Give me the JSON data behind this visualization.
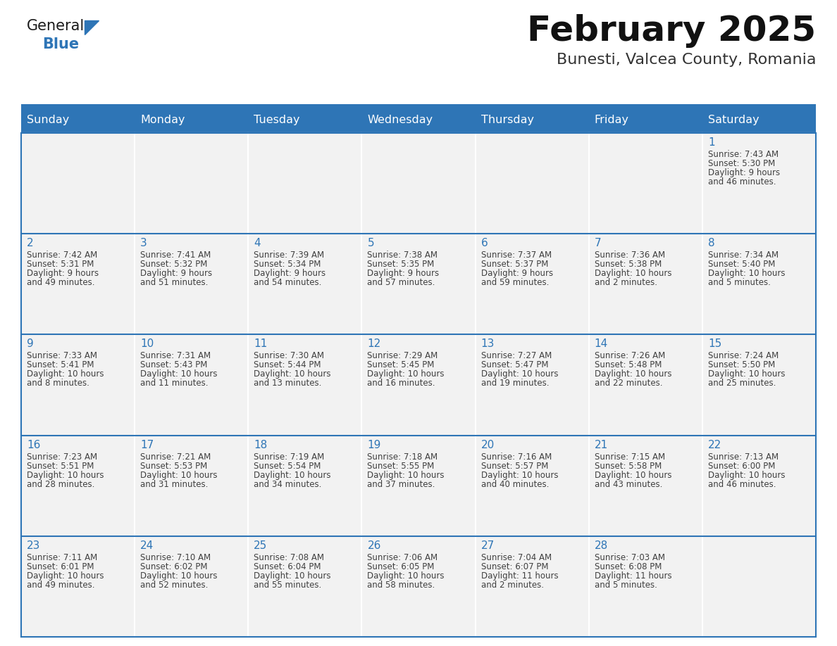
{
  "title": "February 2025",
  "subtitle": "Bunesti, Valcea County, Romania",
  "header_bg": "#2E75B6",
  "header_text_color": "#FFFFFF",
  "cell_bg": "#F2F2F2",
  "cell_bg_empty": "#F2F2F2",
  "day_number_color": "#2E75B6",
  "cell_text_color": "#404040",
  "separator_color": "#2E75B6",
  "border_color": "#2E75B6",
  "days_of_week": [
    "Sunday",
    "Monday",
    "Tuesday",
    "Wednesday",
    "Thursday",
    "Friday",
    "Saturday"
  ],
  "calendar": [
    [
      null,
      null,
      null,
      null,
      null,
      null,
      1
    ],
    [
      2,
      3,
      4,
      5,
      6,
      7,
      8
    ],
    [
      9,
      10,
      11,
      12,
      13,
      14,
      15
    ],
    [
      16,
      17,
      18,
      19,
      20,
      21,
      22
    ],
    [
      23,
      24,
      25,
      26,
      27,
      28,
      null
    ]
  ],
  "cell_data": {
    "1": {
      "sunrise": "7:43 AM",
      "sunset": "5:30 PM",
      "daylight": "9 hours",
      "daylight2": "and 46 minutes."
    },
    "2": {
      "sunrise": "7:42 AM",
      "sunset": "5:31 PM",
      "daylight": "9 hours",
      "daylight2": "and 49 minutes."
    },
    "3": {
      "sunrise": "7:41 AM",
      "sunset": "5:32 PM",
      "daylight": "9 hours",
      "daylight2": "and 51 minutes."
    },
    "4": {
      "sunrise": "7:39 AM",
      "sunset": "5:34 PM",
      "daylight": "9 hours",
      "daylight2": "and 54 minutes."
    },
    "5": {
      "sunrise": "7:38 AM",
      "sunset": "5:35 PM",
      "daylight": "9 hours",
      "daylight2": "and 57 minutes."
    },
    "6": {
      "sunrise": "7:37 AM",
      "sunset": "5:37 PM",
      "daylight": "9 hours",
      "daylight2": "and 59 minutes."
    },
    "7": {
      "sunrise": "7:36 AM",
      "sunset": "5:38 PM",
      "daylight": "10 hours",
      "daylight2": "and 2 minutes."
    },
    "8": {
      "sunrise": "7:34 AM",
      "sunset": "5:40 PM",
      "daylight": "10 hours",
      "daylight2": "and 5 minutes."
    },
    "9": {
      "sunrise": "7:33 AM",
      "sunset": "5:41 PM",
      "daylight": "10 hours",
      "daylight2": "and 8 minutes."
    },
    "10": {
      "sunrise": "7:31 AM",
      "sunset": "5:43 PM",
      "daylight": "10 hours",
      "daylight2": "and 11 minutes."
    },
    "11": {
      "sunrise": "7:30 AM",
      "sunset": "5:44 PM",
      "daylight": "10 hours",
      "daylight2": "and 13 minutes."
    },
    "12": {
      "sunrise": "7:29 AM",
      "sunset": "5:45 PM",
      "daylight": "10 hours",
      "daylight2": "and 16 minutes."
    },
    "13": {
      "sunrise": "7:27 AM",
      "sunset": "5:47 PM",
      "daylight": "10 hours",
      "daylight2": "and 19 minutes."
    },
    "14": {
      "sunrise": "7:26 AM",
      "sunset": "5:48 PM",
      "daylight": "10 hours",
      "daylight2": "and 22 minutes."
    },
    "15": {
      "sunrise": "7:24 AM",
      "sunset": "5:50 PM",
      "daylight": "10 hours",
      "daylight2": "and 25 minutes."
    },
    "16": {
      "sunrise": "7:23 AM",
      "sunset": "5:51 PM",
      "daylight": "10 hours",
      "daylight2": "and 28 minutes."
    },
    "17": {
      "sunrise": "7:21 AM",
      "sunset": "5:53 PM",
      "daylight": "10 hours",
      "daylight2": "and 31 minutes."
    },
    "18": {
      "sunrise": "7:19 AM",
      "sunset": "5:54 PM",
      "daylight": "10 hours",
      "daylight2": "and 34 minutes."
    },
    "19": {
      "sunrise": "7:18 AM",
      "sunset": "5:55 PM",
      "daylight": "10 hours",
      "daylight2": "and 37 minutes."
    },
    "20": {
      "sunrise": "7:16 AM",
      "sunset": "5:57 PM",
      "daylight": "10 hours",
      "daylight2": "and 40 minutes."
    },
    "21": {
      "sunrise": "7:15 AM",
      "sunset": "5:58 PM",
      "daylight": "10 hours",
      "daylight2": "and 43 minutes."
    },
    "22": {
      "sunrise": "7:13 AM",
      "sunset": "6:00 PM",
      "daylight": "10 hours",
      "daylight2": "and 46 minutes."
    },
    "23": {
      "sunrise": "7:11 AM",
      "sunset": "6:01 PM",
      "daylight": "10 hours",
      "daylight2": "and 49 minutes."
    },
    "24": {
      "sunrise": "7:10 AM",
      "sunset": "6:02 PM",
      "daylight": "10 hours",
      "daylight2": "and 52 minutes."
    },
    "25": {
      "sunrise": "7:08 AM",
      "sunset": "6:04 PM",
      "daylight": "10 hours",
      "daylight2": "and 55 minutes."
    },
    "26": {
      "sunrise": "7:06 AM",
      "sunset": "6:05 PM",
      "daylight": "10 hours",
      "daylight2": "and 58 minutes."
    },
    "27": {
      "sunrise": "7:04 AM",
      "sunset": "6:07 PM",
      "daylight": "11 hours",
      "daylight2": "and 2 minutes."
    },
    "28": {
      "sunrise": "7:03 AM",
      "sunset": "6:08 PM",
      "daylight": "11 hours",
      "daylight2": "and 5 minutes."
    }
  }
}
